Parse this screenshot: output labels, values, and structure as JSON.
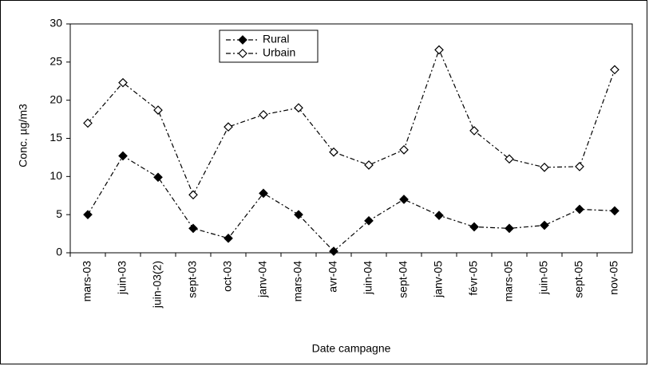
{
  "chart_data": {
    "type": "line",
    "x_label": "Date campagne",
    "y_label": "Conc. µg/m3",
    "categories": [
      "mars-03",
      "juin-03",
      "juin-03(2)",
      "sept-03",
      "oct-03",
      "janv-04",
      "mars-04",
      "avr-04",
      "juin-04",
      "sept-04",
      "janv-05",
      "févr-05",
      "mars-05",
      "juin-05",
      "sept-05",
      "nov-05"
    ],
    "series": [
      {
        "name": "Rural",
        "color": "#000000",
        "marker_fill": "#000000",
        "values": [
          5,
          12.7,
          9.9,
          3.2,
          1.9,
          7.8,
          5.0,
          0.2,
          4.2,
          7.0,
          4.9,
          3.4,
          3.2,
          3.6,
          5.7,
          5.5
        ]
      },
      {
        "name": "Urbain",
        "color": "#000000",
        "marker_fill": "#ffffff",
        "values": [
          17,
          22.3,
          18.7,
          7.6,
          16.5,
          18.1,
          19.0,
          13.2,
          11.5,
          13.5,
          26.6,
          16.0,
          12.3,
          11.2,
          11.3,
          24.0
        ]
      }
    ],
    "ylim": [
      0,
      30
    ],
    "yticks": [
      0,
      5,
      10,
      15,
      20,
      25,
      30
    ],
    "grid": false
  }
}
